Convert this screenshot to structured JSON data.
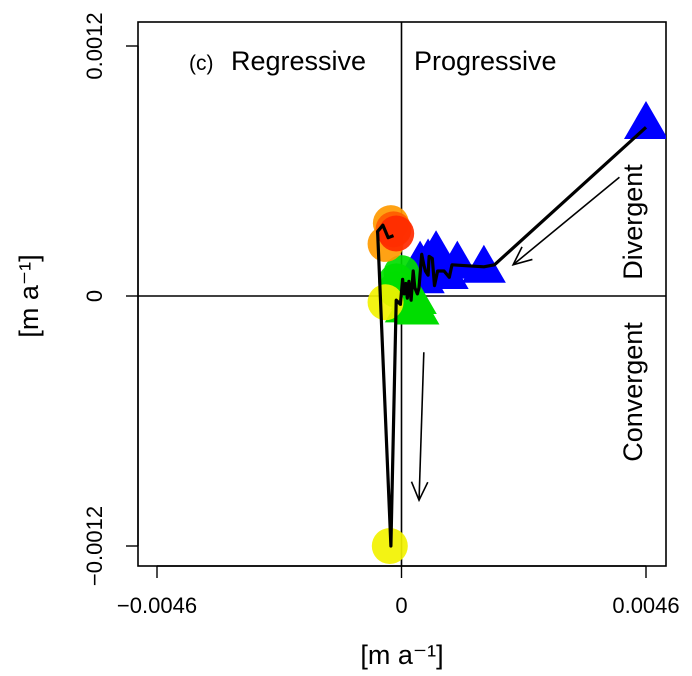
{
  "chart_data": {
    "type": "scatter",
    "panel_label": "(c)",
    "xlabel": "[m a⁻¹]",
    "ylabel": "[m a⁻¹]",
    "xlim": [
      -0.0046,
      0.0046
    ],
    "ylim": [
      -0.0012,
      0.0012
    ],
    "x_ticks": [
      {
        "value": -0.0046,
        "label": "−0.0046"
      },
      {
        "value": 0,
        "label": "0"
      },
      {
        "value": 0.0046,
        "label": "0.0046"
      }
    ],
    "y_ticks": [
      {
        "value": -0.0012,
        "label": "−0.0012"
      },
      {
        "value": 0,
        "label": "0"
      },
      {
        "value": 0.0012,
        "label": "0.0012"
      }
    ],
    "quadrant_labels": {
      "top_left": "Regressive",
      "top_right": "Progressive",
      "right_upper": "Divergent",
      "right_lower": "Convergent"
    },
    "colors": {
      "blue": "#0000ff",
      "green": "#00dd00",
      "yellow": "#f2f200",
      "orange": "#ff9a00",
      "red": "#ff2a00",
      "path": "#000000"
    },
    "points": [
      {
        "x": 0.0046,
        "y": 0.00083,
        "shape": "triangle",
        "color": "#0000ff"
      },
      {
        "x": 0.00155,
        "y": 0.00014,
        "shape": "triangle",
        "color": "#0000ff"
      },
      {
        "x": 0.00105,
        "y": 0.00016,
        "shape": "triangle",
        "color": "#0000ff"
      },
      {
        "x": 0.00085,
        "y": 0.00011,
        "shape": "triangle",
        "color": "#0000ff"
      },
      {
        "x": 0.00065,
        "y": 0.00021,
        "shape": "triangle",
        "color": "#0000ff"
      },
      {
        "x": 0.0005,
        "y": 0.00017,
        "shape": "triangle",
        "color": "#0000ff"
      },
      {
        "x": 0.0004,
        "y": 9e-05,
        "shape": "triangle",
        "color": "#0000ff"
      },
      {
        "x": 0.00035,
        "y": 0.00016,
        "shape": "triangle",
        "color": "#0000ff"
      },
      {
        "x": 0.0003,
        "y": -6e-05,
        "shape": "triangle",
        "color": "#00dd00"
      },
      {
        "x": 0.00025,
        "y": -1e-05,
        "shape": "triangle",
        "color": "#00dd00"
      },
      {
        "x": 0.0002,
        "y": 1e-05,
        "shape": "triangle",
        "color": "#00dd00"
      },
      {
        "x": 0.0001,
        "y": -5e-05,
        "shape": "triangle",
        "color": "#00dd00"
      },
      {
        "x": 0.0,
        "y": 0.00011,
        "shape": "circle",
        "color": "#00dd00"
      },
      {
        "x": -0.0001,
        "y": 7e-05,
        "shape": "circle",
        "color": "#00dd00"
      },
      {
        "x": -0.0001,
        "y": 3e-05,
        "shape": "circle",
        "color": "#00dd00"
      },
      {
        "x": -0.0003,
        "y": -3e-05,
        "shape": "circle",
        "color": "#f2f200"
      },
      {
        "x": -0.00022,
        "y": -0.0012,
        "shape": "circle",
        "color": "#f2f200"
      },
      {
        "x": -0.0003,
        "y": 0.00025,
        "shape": "circle",
        "color": "#ff9a00"
      },
      {
        "x": -0.0002,
        "y": 0.00035,
        "shape": "circle",
        "color": "#ff9a00"
      },
      {
        "x": -0.00015,
        "y": 0.00032,
        "shape": "circle",
        "color": "#ff5a00"
      },
      {
        "x": -0.0001,
        "y": 0.0003,
        "shape": "circle",
        "color": "#ff2a00"
      }
    ],
    "path": [
      [
        0.0046,
        0.00081
      ],
      [
        0.00175,
        0.00015
      ],
      [
        0.00155,
        0.00014
      ],
      [
        0.00095,
        0.00015
      ],
      [
        0.0009,
        9e-05
      ],
      [
        0.0008,
        0.00012
      ],
      [
        0.00068,
        0.00012
      ],
      [
        0.00062,
        5e-05
      ],
      [
        0.00058,
        0.00018
      ],
      [
        0.00052,
        0.00019
      ],
      [
        0.0005,
        0.0001
      ],
      [
        0.00045,
        0.00012
      ],
      [
        0.00042,
        0.00015
      ],
      [
        0.00038,
        0.0002
      ],
      [
        0.00033,
        4e-05
      ],
      [
        0.0003,
        1e-05
      ],
      [
        0.00025,
        4e-05
      ],
      [
        0.00022,
        0.00012
      ],
      [
        0.00018,
        -2e-05
      ],
      [
        0.00014,
        7e-05
      ],
      [
        0.00011,
        -1e-05
      ],
      [
        8e-05,
        6e-05
      ],
      [
        5e-05,
        1e-05
      ],
      [
        2e-05,
        8e-05
      ],
      [
        -2e-05,
        -4e-05
      ],
      [
        -0.0001,
        -2e-05
      ],
      [
        -0.0002,
        -0.0012
      ],
      [
        -0.00045,
        0.00031
      ],
      [
        -0.00035,
        0.00034
      ],
      [
        -0.00025,
        0.00028
      ],
      [
        -0.00015,
        0.00029
      ]
    ],
    "arrows": [
      {
        "from": [
          0.0041,
          0.00057
        ],
        "to": [
          0.0021,
          0.00015
        ]
      },
      {
        "from": [
          0.00042,
          -0.00027
        ],
        "to": [
          0.00033,
          -0.00098
        ]
      }
    ]
  }
}
